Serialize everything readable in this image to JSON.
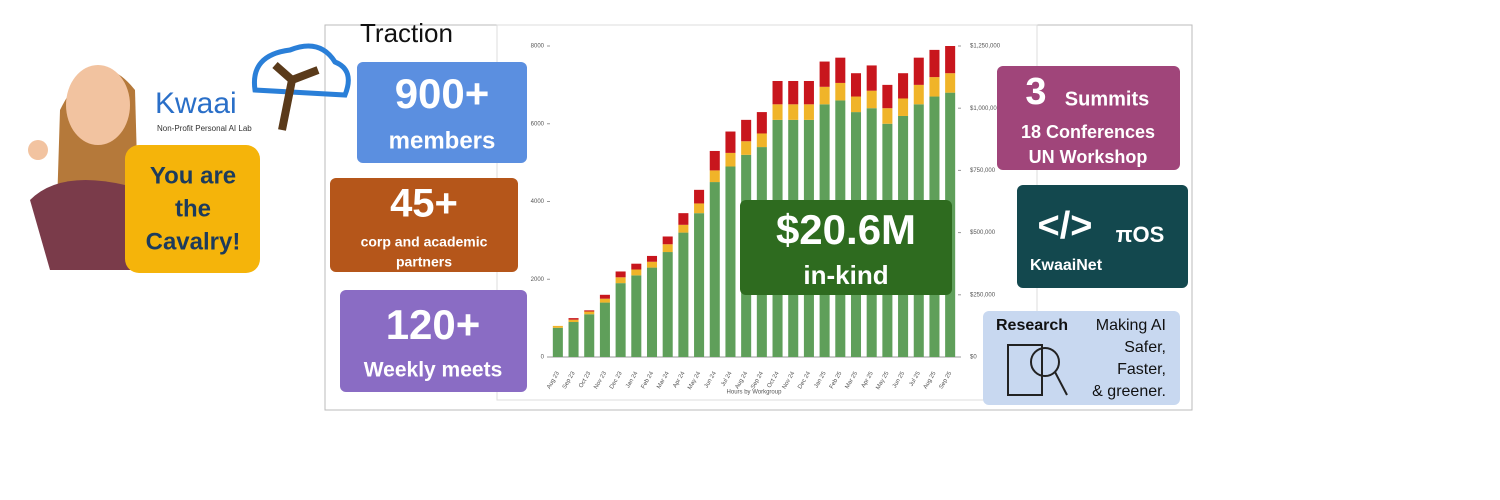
{
  "logo": {
    "name": "Kwaai",
    "tagline": "Non-Profit Personal AI Lab"
  },
  "bubble": {
    "lines": [
      "You are",
      "the",
      "Cavalry!"
    ]
  },
  "heading": "Traction",
  "stats": [
    {
      "number": "900+",
      "lines": [
        "members"
      ]
    },
    {
      "number": "45+",
      "lines": [
        "corp and academic",
        "partners"
      ]
    },
    {
      "number": "120+",
      "lines": [
        "Weekly meets"
      ]
    }
  ],
  "inkind": {
    "number": "$20.6M",
    "label": "in-kind"
  },
  "events": {
    "number": "3",
    "unit": "Summits",
    "lines": [
      "18 Conferences",
      "UN Workshop"
    ]
  },
  "os": {
    "icon": "</>",
    "name": "πOS",
    "label": "KwaaiNet"
  },
  "research": {
    "title": "Research",
    "lines": [
      "Making AI",
      "Safer,",
      "Faster,",
      "& greener."
    ]
  },
  "chart_data": {
    "type": "bar",
    "x_label": "Hours by Workgroup",
    "categories": [
      "Aug 23",
      "Sep 23",
      "Oct 23",
      "Nov 23",
      "Dec 23",
      "Jan 24",
      "Feb 24",
      "Mar 24",
      "Apr 24",
      "May 24",
      "Jun 24",
      "Jul 24",
      "Aug 24",
      "Sep 24",
      "Oct 24",
      "Nov 24",
      "Dec 24",
      "Jan 25",
      "Feb 25",
      "Mar 25",
      "Apr 25",
      "May 25",
      "Jun 25",
      "Jul 25",
      "Aug 25",
      "Sep 25"
    ],
    "series": [
      {
        "color": "#5f9f5a",
        "values": [
          750,
          900,
          1100,
          1400,
          1900,
          2100,
          2300,
          2700,
          3200,
          3700,
          4500,
          4900,
          5200,
          5400,
          6100,
          6100,
          6100,
          6500,
          6600,
          6300,
          6400,
          6000,
          6200,
          6500,
          6700,
          6800
        ]
      },
      {
        "color": "#f0b429",
        "values": [
          50,
          60,
          70,
          100,
          150,
          150,
          150,
          200,
          200,
          250,
          300,
          350,
          350,
          350,
          400,
          400,
          400,
          450,
          450,
          400,
          450,
          400,
          450,
          500,
          500,
          500
        ]
      },
      {
        "color": "#c8161d",
        "values": [
          0,
          40,
          30,
          100,
          150,
          150,
          150,
          200,
          300,
          350,
          500,
          550,
          550,
          550,
          600,
          600,
          600,
          650,
          650,
          600,
          650,
          600,
          650,
          700,
          700,
          700
        ]
      }
    ],
    "ylim": [
      0,
      8000
    ],
    "yticks": [
      0,
      2000,
      4000,
      6000,
      8000
    ],
    "y2lim": [
      0,
      1250000
    ],
    "y2ticks": [
      {
        "value": 0,
        "label": "$0"
      },
      {
        "value": 250000,
        "label": "$250,000"
      },
      {
        "value": 500000,
        "label": "$500,000"
      },
      {
        "value": 750000,
        "label": "$750,000"
      },
      {
        "value": 1000000,
        "label": "$1,000,000"
      },
      {
        "value": 1250000,
        "label": "$1,250,000"
      }
    ]
  }
}
